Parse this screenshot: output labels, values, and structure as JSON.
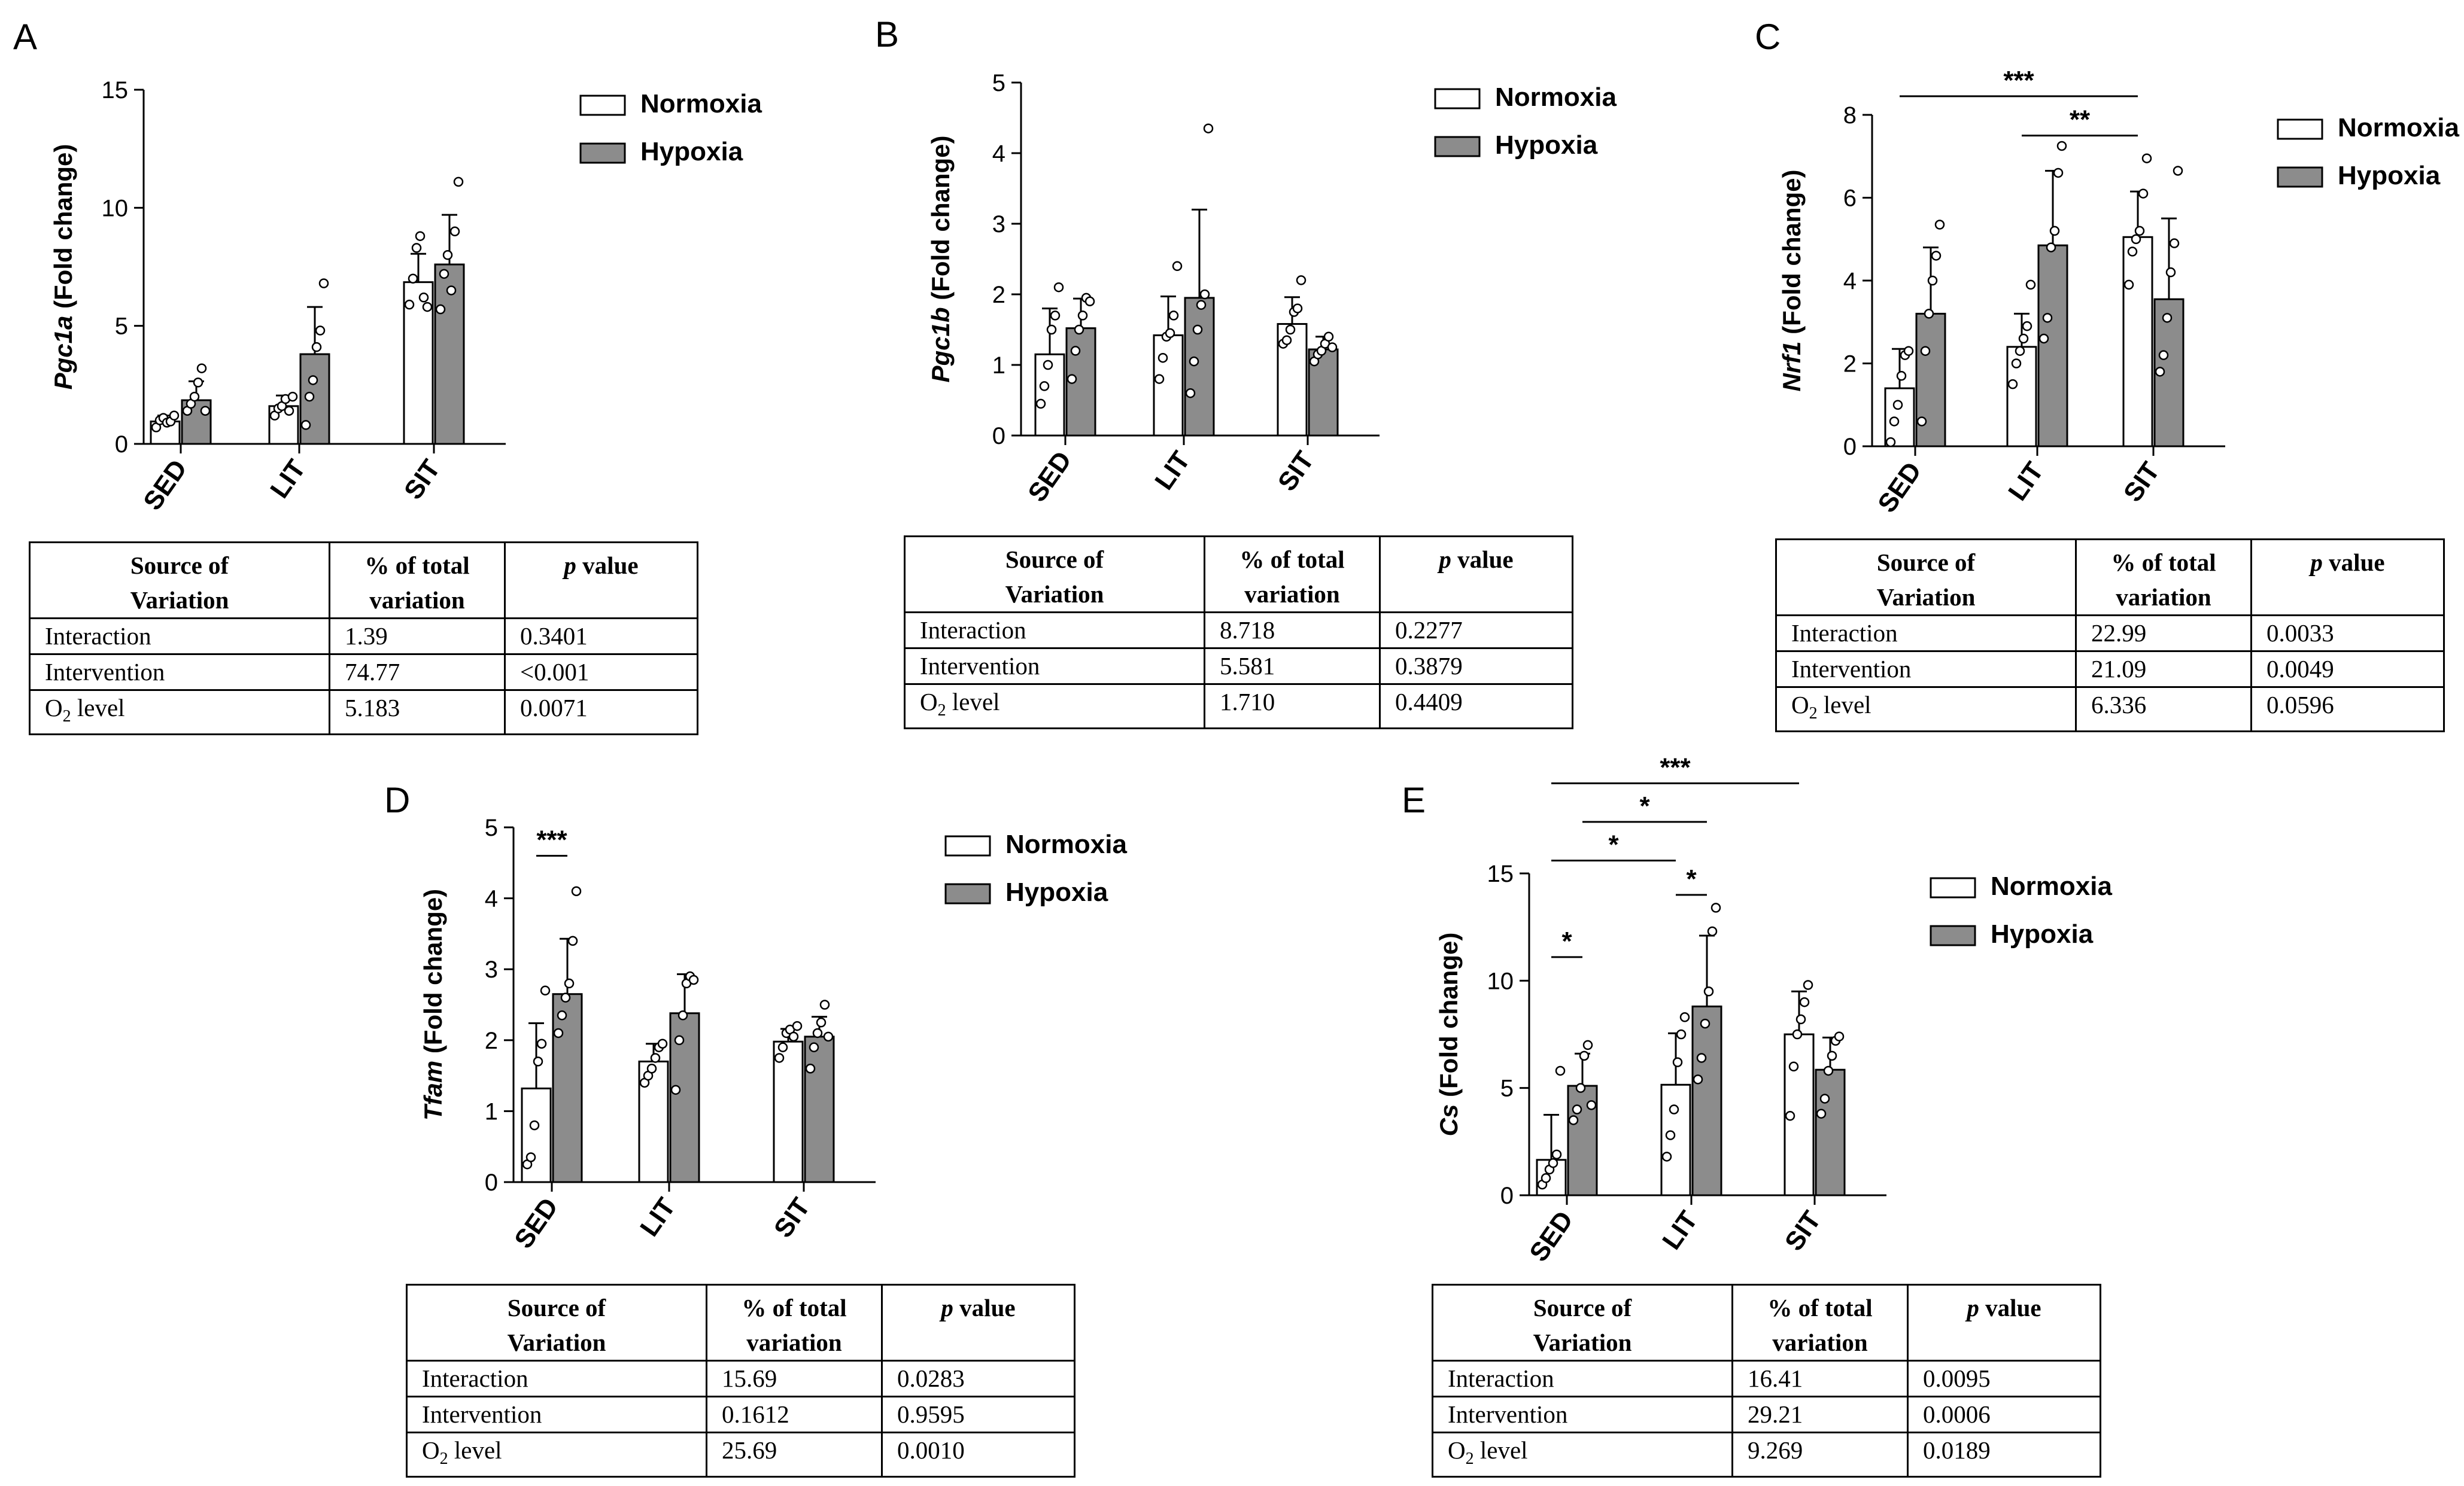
{
  "panels": [
    {
      "letter": "A",
      "gene": "Pgc1a",
      "y_title_rest": " (Fold change)",
      "ymax": 15,
      "yticks": [
        0,
        5,
        10,
        15
      ],
      "categories": [
        "SED",
        "LIT",
        "SIT"
      ],
      "series": [
        {
          "name": "Normoxia",
          "means": [
            0.95,
            1.6,
            6.85
          ],
          "errs": [
            0.25,
            0.45,
            1.2
          ],
          "points": [
            [
              0.7,
              1.0,
              1.1,
              0.9,
              0.95,
              1.2
            ],
            [
              1.2,
              1.5,
              1.6,
              1.9,
              1.4,
              2.0
            ],
            [
              5.9,
              7.0,
              8.3,
              8.8,
              6.2,
              5.8
            ]
          ]
        },
        {
          "name": "Hypoxia",
          "means": [
            1.85,
            3.8,
            7.6
          ],
          "errs": [
            0.8,
            2.0,
            2.1
          ],
          "points": [
            [
              1.4,
              1.7,
              2.0,
              2.6,
              3.2,
              1.4
            ],
            [
              0.8,
              2.0,
              2.7,
              4.1,
              4.8,
              6.8
            ],
            [
              5.7,
              7.2,
              8.0,
              6.5,
              9.0,
              11.1
            ]
          ]
        }
      ],
      "sig": [],
      "table": {
        "header": [
          "Source of Variation",
          "% of total variation",
          "p value"
        ],
        "rows": [
          [
            "Interaction",
            "1.39",
            "0.3401"
          ],
          [
            "Intervention",
            "74.77",
            "<0.001"
          ],
          [
            "O2 level",
            "5.183",
            "0.0071"
          ]
        ]
      }
    },
    {
      "letter": "B",
      "gene": "Pgc1b",
      "y_title_rest": " (Fold change)",
      "ymax": 5,
      "yticks": [
        0,
        1,
        2,
        3,
        4,
        5
      ],
      "categories": [
        "SED",
        "LIT",
        "SIT"
      ],
      "series": [
        {
          "name": "Normoxia",
          "means": [
            1.15,
            1.42,
            1.58
          ],
          "errs": [
            0.65,
            0.55,
            0.38
          ],
          "points": [
            [
              0.45,
              0.7,
              1.0,
              1.5,
              1.7,
              2.1
            ],
            [
              0.8,
              1.1,
              1.4,
              1.45,
              1.7,
              2.4
            ],
            [
              1.3,
              1.35,
              1.5,
              1.75,
              1.8,
              2.2
            ]
          ]
        },
        {
          "name": "Hypoxia",
          "means": [
            1.52,
            1.95,
            1.22
          ],
          "errs": [
            0.42,
            1.25,
            0.18
          ],
          "points": [
            [
              0.8,
              1.2,
              1.5,
              1.7,
              1.95,
              1.9
            ],
            [
              0.6,
              1.05,
              1.5,
              1.85,
              2.0,
              4.35
            ],
            [
              1.05,
              1.15,
              1.2,
              1.3,
              1.4,
              1.25
            ]
          ]
        }
      ],
      "sig": [],
      "table": {
        "header": [
          "Source of Variation",
          "% of total variation",
          "p value"
        ],
        "rows": [
          [
            "Interaction",
            "8.718",
            "0.2277"
          ],
          [
            "Intervention",
            "5.581",
            "0.3879"
          ],
          [
            "O2 level",
            "1.710",
            "0.4409"
          ]
        ]
      }
    },
    {
      "letter": "C",
      "gene": "Nrf1",
      "y_title_rest": " (Fold change)",
      "ymax": 8,
      "yticks": [
        0,
        2,
        4,
        6,
        8
      ],
      "categories": [
        "SED",
        "LIT",
        "SIT"
      ],
      "series": [
        {
          "name": "Normoxia",
          "means": [
            1.4,
            2.4,
            5.05
          ],
          "errs": [
            0.95,
            0.8,
            1.1
          ],
          "points": [
            [
              0.1,
              0.6,
              1.0,
              1.7,
              2.2,
              2.3
            ],
            [
              1.5,
              2.0,
              2.3,
              2.6,
              2.9,
              3.9
            ],
            [
              3.9,
              4.7,
              5.0,
              5.2,
              6.1,
              6.95
            ]
          ]
        },
        {
          "name": "Hypoxia",
          "means": [
            3.2,
            4.85,
            3.55
          ],
          "errs": [
            1.6,
            1.8,
            1.95
          ],
          "points": [
            [
              0.6,
              2.3,
              3.2,
              4.0,
              4.6,
              5.35
            ],
            [
              2.6,
              3.1,
              4.8,
              5.2,
              6.6,
              7.25
            ],
            [
              1.8,
              2.2,
              3.1,
              4.2,
              4.9,
              6.65
            ]
          ]
        }
      ],
      "sig": [
        {
          "label": "***",
          "from": [
            0,
            0
          ],
          "to": [
            2,
            0
          ],
          "level": 8.45
        },
        {
          "label": "**",
          "from": [
            1,
            0
          ],
          "to": [
            2,
            0
          ],
          "level": 7.5
        }
      ],
      "table": {
        "header": [
          "Source of Variation",
          "% of total variation",
          "p value"
        ],
        "rows": [
          [
            "Interaction",
            "22.99",
            "0.0033"
          ],
          [
            "Intervention",
            "21.09",
            "0.0049"
          ],
          [
            "O2 level",
            "6.336",
            "0.0596"
          ]
        ]
      }
    },
    {
      "letter": "D",
      "gene": "Tfam",
      "y_title_rest": " (Fold change)",
      "ymax": 5,
      "yticks": [
        0,
        1,
        2,
        3,
        4,
        5
      ],
      "categories": [
        "SED",
        "LIT",
        "SIT"
      ],
      "series": [
        {
          "name": "Normoxia",
          "means": [
            1.32,
            1.7,
            1.98
          ],
          "errs": [
            0.92,
            0.25,
            0.18
          ],
          "points": [
            [
              0.25,
              0.35,
              0.8,
              1.7,
              1.95,
              2.7
            ],
            [
              1.4,
              1.5,
              1.6,
              1.75,
              1.9,
              1.95
            ],
            [
              1.75,
              1.9,
              2.1,
              2.15,
              2.05,
              2.2
            ]
          ]
        },
        {
          "name": "Hypoxia",
          "means": [
            2.65,
            2.38,
            2.05
          ],
          "errs": [
            0.78,
            0.55,
            0.28
          ],
          "points": [
            [
              2.1,
              2.35,
              2.6,
              2.8,
              3.4,
              4.1
            ],
            [
              1.3,
              2.0,
              2.35,
              2.8,
              2.9,
              2.85
            ],
            [
              1.6,
              1.9,
              2.1,
              2.25,
              2.5,
              2.05
            ]
          ]
        }
      ],
      "sig": [
        {
          "label": "***",
          "from": [
            0,
            0
          ],
          "to": [
            0,
            1
          ],
          "level": 4.6
        }
      ],
      "table": {
        "header": [
          "Source of Variation",
          "% of total variation",
          "p value"
        ],
        "rows": [
          [
            "Interaction",
            "15.69",
            "0.0283"
          ],
          [
            "Intervention",
            "0.1612",
            "0.9595"
          ],
          [
            "O2 level",
            "25.69",
            "0.0010"
          ]
        ]
      }
    },
    {
      "letter": "E",
      "gene": "Cs",
      "y_title_rest": " (Fold change)",
      "ymax": 15,
      "yticks": [
        0,
        5,
        10,
        15
      ],
      "categories": [
        "SED",
        "LIT",
        "SIT"
      ],
      "series": [
        {
          "name": "Normoxia",
          "means": [
            1.65,
            5.15,
            7.5
          ],
          "errs": [
            2.1,
            2.4,
            2.0
          ],
          "points": [
            [
              0.5,
              0.8,
              1.2,
              1.5,
              1.9,
              5.8
            ],
            [
              1.8,
              2.8,
              4.0,
              6.2,
              7.5,
              8.3
            ],
            [
              3.7,
              6.0,
              7.5,
              8.2,
              9.0,
              9.8
            ]
          ]
        },
        {
          "name": "Hypoxia",
          "means": [
            5.1,
            8.8,
            5.85
          ],
          "errs": [
            1.5,
            3.3,
            1.5
          ],
          "points": [
            [
              3.5,
              4.0,
              5.0,
              6.5,
              7.0,
              4.2
            ],
            [
              5.4,
              6.4,
              8.0,
              9.5,
              12.3,
              13.4
            ],
            [
              3.8,
              4.5,
              5.8,
              6.5,
              7.2,
              7.4
            ]
          ]
        }
      ],
      "sig": [
        {
          "label": "***",
          "from": [
            0,
            0
          ],
          "to": [
            2,
            0
          ],
          "level": 19.2
        },
        {
          "label": "*",
          "from": [
            0,
            1
          ],
          "to": [
            1,
            1
          ],
          "level": 17.4
        },
        {
          "label": "*",
          "from": [
            0,
            0
          ],
          "to": [
            1,
            0
          ],
          "level": 15.6
        },
        {
          "label": "*",
          "from": [
            1,
            0
          ],
          "to": [
            1,
            1
          ],
          "level": 14.0
        },
        {
          "label": "*",
          "from": [
            0,
            0
          ],
          "to": [
            0,
            1
          ],
          "level": 11.1
        }
      ],
      "table": {
        "header": [
          "Source of Variation",
          "% of total variation",
          "p value"
        ],
        "rows": [
          [
            "Interaction",
            "16.41",
            "0.0095"
          ],
          [
            "Intervention",
            "29.21",
            "0.0006"
          ],
          [
            "O2 level",
            "9.269",
            "0.0189"
          ]
        ]
      }
    }
  ],
  "legend": [
    "Normoxia",
    "Hypoxia"
  ],
  "colors": {
    "normoxia": "#ffffff",
    "hypoxia": "#8c8c8c",
    "stroke": "#000000"
  },
  "chart_data": [
    {
      "type": "bar",
      "title": "A",
      "ylabel": "Pgc1a (Fold change)",
      "categories": [
        "SED",
        "LIT",
        "SIT"
      ],
      "ylim": [
        0,
        15
      ],
      "series": [
        {
          "name": "Normoxia",
          "values": [
            0.95,
            1.6,
            6.85
          ]
        },
        {
          "name": "Hypoxia",
          "values": [
            1.85,
            3.8,
            7.6
          ]
        }
      ]
    },
    {
      "type": "bar",
      "title": "B",
      "ylabel": "Pgc1b (Fold change)",
      "categories": [
        "SED",
        "LIT",
        "SIT"
      ],
      "ylim": [
        0,
        5
      ],
      "series": [
        {
          "name": "Normoxia",
          "values": [
            1.15,
            1.42,
            1.58
          ]
        },
        {
          "name": "Hypoxia",
          "values": [
            1.52,
            1.95,
            1.22
          ]
        }
      ]
    },
    {
      "type": "bar",
      "title": "C",
      "ylabel": "Nrf1 (Fold change)",
      "categories": [
        "SED",
        "LIT",
        "SIT"
      ],
      "ylim": [
        0,
        8
      ],
      "series": [
        {
          "name": "Normoxia",
          "values": [
            1.4,
            2.4,
            5.05
          ]
        },
        {
          "name": "Hypoxia",
          "values": [
            3.2,
            4.85,
            3.55
          ]
        }
      ]
    },
    {
      "type": "bar",
      "title": "D",
      "ylabel": "Tfam (Fold change)",
      "categories": [
        "SED",
        "LIT",
        "SIT"
      ],
      "ylim": [
        0,
        5
      ],
      "series": [
        {
          "name": "Normoxia",
          "values": [
            1.32,
            1.7,
            1.98
          ]
        },
        {
          "name": "Hypoxia",
          "values": [
            2.65,
            2.38,
            2.05
          ]
        }
      ]
    },
    {
      "type": "bar",
      "title": "E",
      "ylabel": "Cs (Fold change)",
      "categories": [
        "SED",
        "LIT",
        "SIT"
      ],
      "ylim": [
        0,
        15
      ],
      "series": [
        {
          "name": "Normoxia",
          "values": [
            1.65,
            5.15,
            7.5
          ]
        },
        {
          "name": "Hypoxia",
          "values": [
            5.1,
            8.8,
            5.85
          ]
        }
      ]
    }
  ]
}
